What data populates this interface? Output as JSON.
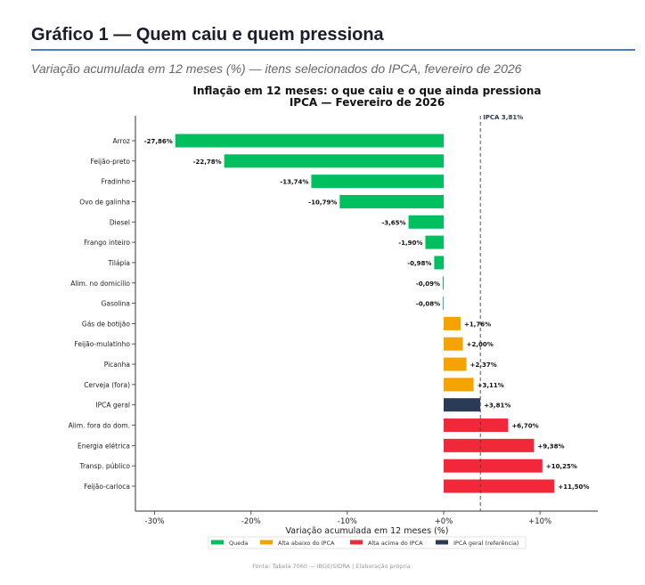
{
  "page": {
    "heading": "Gráfico 1 — Quem caiu e quem pressiona",
    "subheading": "Variação acumulada em 12 meses (%) — itens selecionados do IPCA, fevereiro de 2026"
  },
  "chart_data": {
    "type": "bar",
    "orientation": "horizontal",
    "title": "Inflação em 12 meses: o que caiu e o que ainda pressiona",
    "subtitle": "IPCA — Fevereiro de 2026",
    "xlabel": "Variação acumulada em 12 meses (%)",
    "ylabel": "",
    "xlim": [
      -32,
      16
    ],
    "xticks": [
      -30,
      -20,
      -10,
      0,
      10
    ],
    "xtick_labels": [
      "-30%",
      "-20%",
      "-10%",
      "+0%",
      "+10%"
    ],
    "grid": false,
    "reference_line": {
      "value": 3.81,
      "label": "IPCA 3,81%"
    },
    "categories": [
      "Arroz",
      "Feijão-preto",
      "Fradinho",
      "Ovo de galinha",
      "Diesel",
      "Frango inteiro",
      "Tilápia",
      "Alim. no domicílio",
      "Gasolina",
      "Gás de botijão",
      "Feijão-mulatinho",
      "Picanha",
      "Cerveja (fora)",
      "IPCA geral",
      "Alim. fora do dom.",
      "Energia elétrica",
      "Transp. público",
      "Feijão-carioca"
    ],
    "values": [
      -27.86,
      -22.78,
      -13.74,
      -10.79,
      -3.65,
      -1.9,
      -0.98,
      -0.09,
      -0.08,
      1.76,
      2.0,
      2.37,
      3.11,
      3.81,
      6.7,
      9.38,
      10.25,
      11.5
    ],
    "value_labels": [
      "-27,86%",
      "-22,78%",
      "-13,74%",
      "-10,79%",
      "-3,65%",
      "-1,90%",
      "-0,98%",
      "-0,09%",
      "-0,08%",
      "+1,76%",
      "+2,00%",
      "+2,37%",
      "+3,11%",
      "+3,81%",
      "+6,70%",
      "+9,38%",
      "+10,25%",
      "+11,50%"
    ],
    "groups": [
      "queda",
      "queda",
      "queda",
      "queda",
      "queda",
      "queda",
      "queda",
      "queda",
      "queda",
      "abaixo",
      "abaixo",
      "abaixo",
      "abaixo",
      "ipca",
      "acima",
      "acima",
      "acima",
      "acima"
    ],
    "legend": {
      "placement": "bottom",
      "items": [
        {
          "key": "queda",
          "label": "Queda",
          "color": "#00bf5f"
        },
        {
          "key": "abaixo",
          "label": "Alta abaixo do IPCA",
          "color": "#f5a300"
        },
        {
          "key": "acima",
          "label": "Alta acima do IPCA",
          "color": "#f0283a"
        },
        {
          "key": "ipca",
          "label": "IPCA geral (referência)",
          "color": "#2b3a55"
        }
      ]
    },
    "source": "Fonte: Tabela 7060 — IBGE/SIDRA  |  Elaboração própria"
  }
}
